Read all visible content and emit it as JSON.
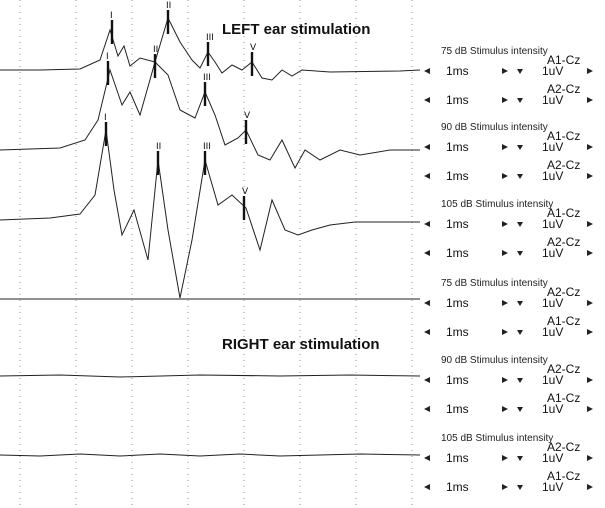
{
  "titles": {
    "left": "LEFT ear stimulation",
    "right": "RIGHT ear stimulation"
  },
  "controls": {
    "time_base": "1ms",
    "gain": "1uV"
  },
  "chart_data": {
    "type": "line",
    "x_grid_count": 8,
    "groups": [
      {
        "label": "75 dB Stimulus intensity",
        "channels": [
          "A1-Cz",
          "A2-Cz"
        ]
      },
      {
        "label": "90 dB Stimulus intensity",
        "channels": [
          "A1-Cz",
          "A2-Cz"
        ]
      },
      {
        "label": "105 dB Stimulus intensity",
        "channels": [
          "A1-Cz",
          "A2-Cz"
        ]
      },
      {
        "label": "75 dB Stimulus intensity",
        "channels": [
          "A2-Cz",
          "A1-Cz"
        ]
      },
      {
        "label": "90 dB Stimulus intensity",
        "channels": [
          "A2-Cz",
          "A1-Cz"
        ]
      },
      {
        "label": "105 dB Stimulus intensity",
        "channels": [
          "A2-Cz",
          "A1-Cz"
        ]
      }
    ],
    "traces": [
      {
        "name": "Left 75 dB",
        "points": [
          [
            0,
            70
          ],
          [
            40,
            70
          ],
          [
            80,
            69
          ],
          [
            100,
            60
          ],
          [
            110,
            30
          ],
          [
            118,
            56
          ],
          [
            124,
            46
          ],
          [
            130,
            66
          ],
          [
            140,
            58
          ],
          [
            155,
            62
          ],
          [
            168,
            18
          ],
          [
            180,
            42
          ],
          [
            192,
            60
          ],
          [
            200,
            68
          ],
          [
            208,
            52
          ],
          [
            215,
            62
          ],
          [
            222,
            73
          ],
          [
            232,
            65
          ],
          [
            242,
            70
          ],
          [
            252,
            62
          ],
          [
            262,
            78
          ],
          [
            272,
            80
          ],
          [
            282,
            70
          ],
          [
            292,
            76
          ],
          [
            302,
            70
          ],
          [
            330,
            72
          ],
          [
            400,
            71
          ],
          [
            420,
            70
          ]
        ],
        "peaks": [
          {
            "label": "I",
            "x": 112,
            "y": 24
          },
          {
            "label": "II",
            "x": 168,
            "y": 14
          },
          {
            "label": "III",
            "x": 208,
            "y": 46
          },
          {
            "label": "V",
            "x": 252,
            "y": 56
          }
        ]
      },
      {
        "name": "Left 90 dB",
        "points": [
          [
            0,
            150
          ],
          [
            60,
            148
          ],
          [
            85,
            140
          ],
          [
            98,
            120
          ],
          [
            110,
            70
          ],
          [
            122,
            105
          ],
          [
            130,
            92
          ],
          [
            140,
            115
          ],
          [
            155,
            62
          ],
          [
            168,
            75
          ],
          [
            180,
            110
          ],
          [
            195,
            118
          ],
          [
            205,
            92
          ],
          [
            215,
            115
          ],
          [
            225,
            145
          ],
          [
            238,
            138
          ],
          [
            246,
            130
          ],
          [
            258,
            155
          ],
          [
            270,
            160
          ],
          [
            282,
            140
          ],
          [
            295,
            168
          ],
          [
            305,
            150
          ],
          [
            320,
            160
          ],
          [
            340,
            150
          ],
          [
            360,
            155
          ],
          [
            390,
            150
          ],
          [
            420,
            150
          ]
        ],
        "peaks": [
          {
            "label": "I",
            "x": 108,
            "y": 65
          },
          {
            "label": "II",
            "x": 155,
            "y": 58
          },
          {
            "label": "III",
            "x": 205,
            "y": 86
          },
          {
            "label": "V",
            "x": 246,
            "y": 124
          }
        ]
      },
      {
        "name": "Left 105 dB",
        "points": [
          [
            0,
            220
          ],
          [
            50,
            218
          ],
          [
            80,
            214
          ],
          [
            95,
            195
          ],
          [
            106,
            130
          ],
          [
            114,
            190
          ],
          [
            122,
            235
          ],
          [
            134,
            210
          ],
          [
            148,
            260
          ],
          [
            158,
            160
          ],
          [
            168,
            230
          ],
          [
            180,
            298
          ],
          [
            192,
            240
          ],
          [
            205,
            160
          ],
          [
            218,
            205
          ],
          [
            232,
            195
          ],
          [
            246,
            208
          ],
          [
            260,
            250
          ],
          [
            272,
            200
          ],
          [
            285,
            230
          ],
          [
            298,
            235
          ],
          [
            312,
            230
          ],
          [
            330,
            225
          ],
          [
            355,
            222
          ],
          [
            390,
            222
          ],
          [
            420,
            222
          ]
        ],
        "peaks": [
          {
            "label": "I",
            "x": 106,
            "y": 126
          },
          {
            "label": "II",
            "x": 158,
            "y": 155
          },
          {
            "label": "III",
            "x": 205,
            "y": 155
          },
          {
            "label": "V",
            "x": 244,
            "y": 200
          }
        ]
      },
      {
        "name": "Right 75 dB",
        "points": [
          [
            0,
            299
          ],
          [
            420,
            299
          ]
        ],
        "peaks": []
      },
      {
        "name": "Right 90 dB",
        "points": [
          [
            0,
            376
          ],
          [
            60,
            375
          ],
          [
            120,
            377
          ],
          [
            200,
            375
          ],
          [
            280,
            376
          ],
          [
            350,
            375
          ],
          [
            420,
            376
          ]
        ],
        "peaks": []
      },
      {
        "name": "Right 105 dB",
        "points": [
          [
            0,
            455
          ],
          [
            40,
            456
          ],
          [
            80,
            454
          ],
          [
            120,
            456
          ],
          [
            160,
            454
          ],
          [
            200,
            456
          ],
          [
            240,
            454
          ],
          [
            280,
            456
          ],
          [
            320,
            455
          ],
          [
            360,
            454
          ],
          [
            420,
            455
          ]
        ],
        "peaks": []
      }
    ]
  }
}
